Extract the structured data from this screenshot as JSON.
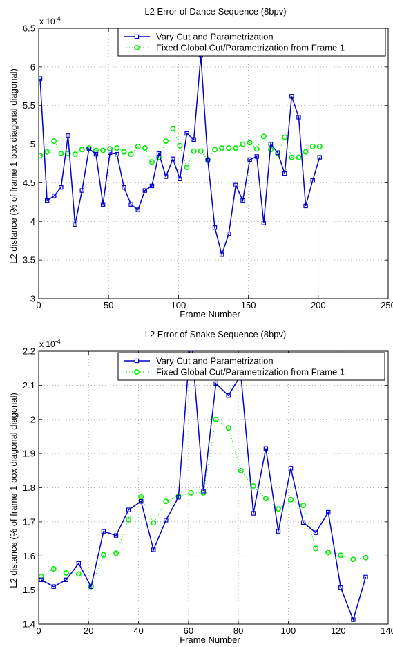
{
  "chart_data": [
    {
      "type": "line",
      "title": "L2 Error of Dance Sequence (8bpv)",
      "xlabel": "Frame Number",
      "ylabel": "L2 distance (% of frame 1 box diagonal diagonal)",
      "exponent_label": "x 10",
      "exponent_power": "-4",
      "xlim": [
        0,
        250
      ],
      "ylim": [
        3,
        6.5
      ],
      "xticks": [
        0,
        50,
        100,
        150,
        200,
        250
      ],
      "yticks": [
        3,
        3.5,
        4,
        4.5,
        5,
        5.5,
        6,
        6.5
      ],
      "xtick_labels": [
        "0",
        "50",
        "100",
        "150",
        "200",
        "250"
      ],
      "ytick_labels": [
        "3",
        "3.5",
        "4",
        "4.5",
        "5",
        "5.5",
        "6",
        "6.5"
      ],
      "grid": true,
      "legend_position": "top-right",
      "series": [
        {
          "name": "Vary Cut and Parametrization",
          "color": "#0000cc",
          "line_style": "solid",
          "marker": "square",
          "x": [
            1,
            6,
            11,
            16,
            21,
            26,
            31,
            36,
            41,
            46,
            51,
            56,
            61,
            66,
            71,
            76,
            81,
            86,
            91,
            96,
            101,
            106,
            111,
            116,
            121,
            126,
            131,
            136,
            141,
            146,
            151,
            156,
            161,
            166,
            171,
            176,
            181,
            186,
            191,
            196,
            201
          ],
          "y": [
            5.85,
            4.27,
            4.33,
            4.44,
            5.11,
            3.96,
            4.4,
            4.94,
            4.87,
            4.22,
            4.89,
            4.87,
            4.44,
            4.22,
            4.15,
            4.4,
            4.46,
            4.88,
            4.58,
            4.81,
            4.55,
            5.14,
            5.06,
            6.15,
            4.79,
            3.92,
            3.57,
            3.84,
            4.47,
            4.27,
            4.8,
            4.84,
            3.98,
            5.0,
            4.89,
            4.62,
            5.62,
            5.35,
            4.2,
            4.53,
            4.83
          ]
        },
        {
          "name": "Fixed Global Cut/Parametrization from Frame 1",
          "color": "#00ee00",
          "line_style": "dotted",
          "marker": "circle",
          "x": [
            1,
            6,
            11,
            16,
            21,
            26,
            31,
            36,
            41,
            46,
            51,
            56,
            61,
            66,
            71,
            76,
            81,
            86,
            91,
            96,
            101,
            106,
            111,
            116,
            121,
            126,
            131,
            136,
            141,
            146,
            151,
            156,
            161,
            166,
            171,
            176,
            181,
            186,
            191,
            196,
            201
          ],
          "y": [
            4.85,
            4.9,
            5.04,
            4.88,
            4.88,
            4.87,
            4.93,
            4.95,
            4.92,
            4.92,
            4.94,
            4.95,
            4.9,
            4.87,
            4.97,
            4.95,
            4.77,
            4.83,
            5.04,
            5.2,
            4.98,
            4.7,
            4.91,
            4.91,
            4.8,
            4.93,
            4.95,
            4.95,
            4.95,
            5.0,
            5.02,
            4.94,
            5.1,
            4.93,
            4.88,
            5.09,
            4.83,
            4.83,
            4.9,
            4.97,
            4.97
          ]
        }
      ]
    },
    {
      "type": "line",
      "title": "L2 Error of Snake Sequence (8bpv)",
      "xlabel": "Frame Number",
      "ylabel": "L2 distance (% of frame 1 box diagonal diagonal)",
      "exponent_label": "x 10",
      "exponent_power": "-4",
      "xlim": [
        0,
        140
      ],
      "ylim": [
        1.4,
        2.2
      ],
      "xticks": [
        0,
        20,
        40,
        60,
        80,
        100,
        120,
        140
      ],
      "yticks": [
        1.4,
        1.5,
        1.6,
        1.7,
        1.8,
        1.9,
        2.0,
        2.1,
        2.2
      ],
      "xtick_labels": [
        "0",
        "20",
        "40",
        "60",
        "80",
        "100",
        "120",
        "140"
      ],
      "ytick_labels": [
        "1.4",
        "1.5",
        "1.6",
        "1.7",
        "1.8",
        "1.9",
        "2",
        "2.1",
        "2.2"
      ],
      "grid": true,
      "legend_position": "top-right",
      "series": [
        {
          "name": "Vary Cut and Parametrization",
          "color": "#0000cc",
          "line_style": "solid",
          "marker": "square",
          "x": [
            1,
            6,
            11,
            16,
            21,
            26,
            31,
            36,
            41,
            46,
            51,
            56,
            61,
            66,
            71,
            76,
            81,
            86,
            91,
            96,
            101,
            106,
            111,
            116,
            121,
            126,
            131
          ],
          "y": [
            1.53,
            1.51,
            1.53,
            1.578,
            1.51,
            1.672,
            1.66,
            1.735,
            1.76,
            1.618,
            1.705,
            1.772,
            2.25,
            1.79,
            2.105,
            2.07,
            2.13,
            1.725,
            1.915,
            1.672,
            1.857,
            1.698,
            1.668,
            1.728,
            1.507,
            1.413,
            1.538
          ]
        },
        {
          "name": "Fixed Global Cut/Parametrization from Frame 1",
          "color": "#00ee00",
          "line_style": "dotted",
          "marker": "circle",
          "x": [
            1,
            6,
            11,
            16,
            21,
            26,
            31,
            36,
            41,
            46,
            51,
            56,
            61,
            66,
            71,
            76,
            81,
            86,
            91,
            96,
            101,
            106,
            111,
            116,
            121,
            126,
            131
          ],
          "y": [
            1.54,
            1.562,
            1.55,
            1.547,
            1.51,
            1.603,
            1.608,
            1.706,
            1.773,
            1.697,
            1.76,
            1.775,
            1.785,
            1.785,
            2.0,
            1.975,
            1.85,
            1.805,
            1.768,
            1.738,
            1.765,
            1.748,
            1.622,
            1.61,
            1.602,
            1.59,
            1.595
          ]
        }
      ]
    }
  ]
}
